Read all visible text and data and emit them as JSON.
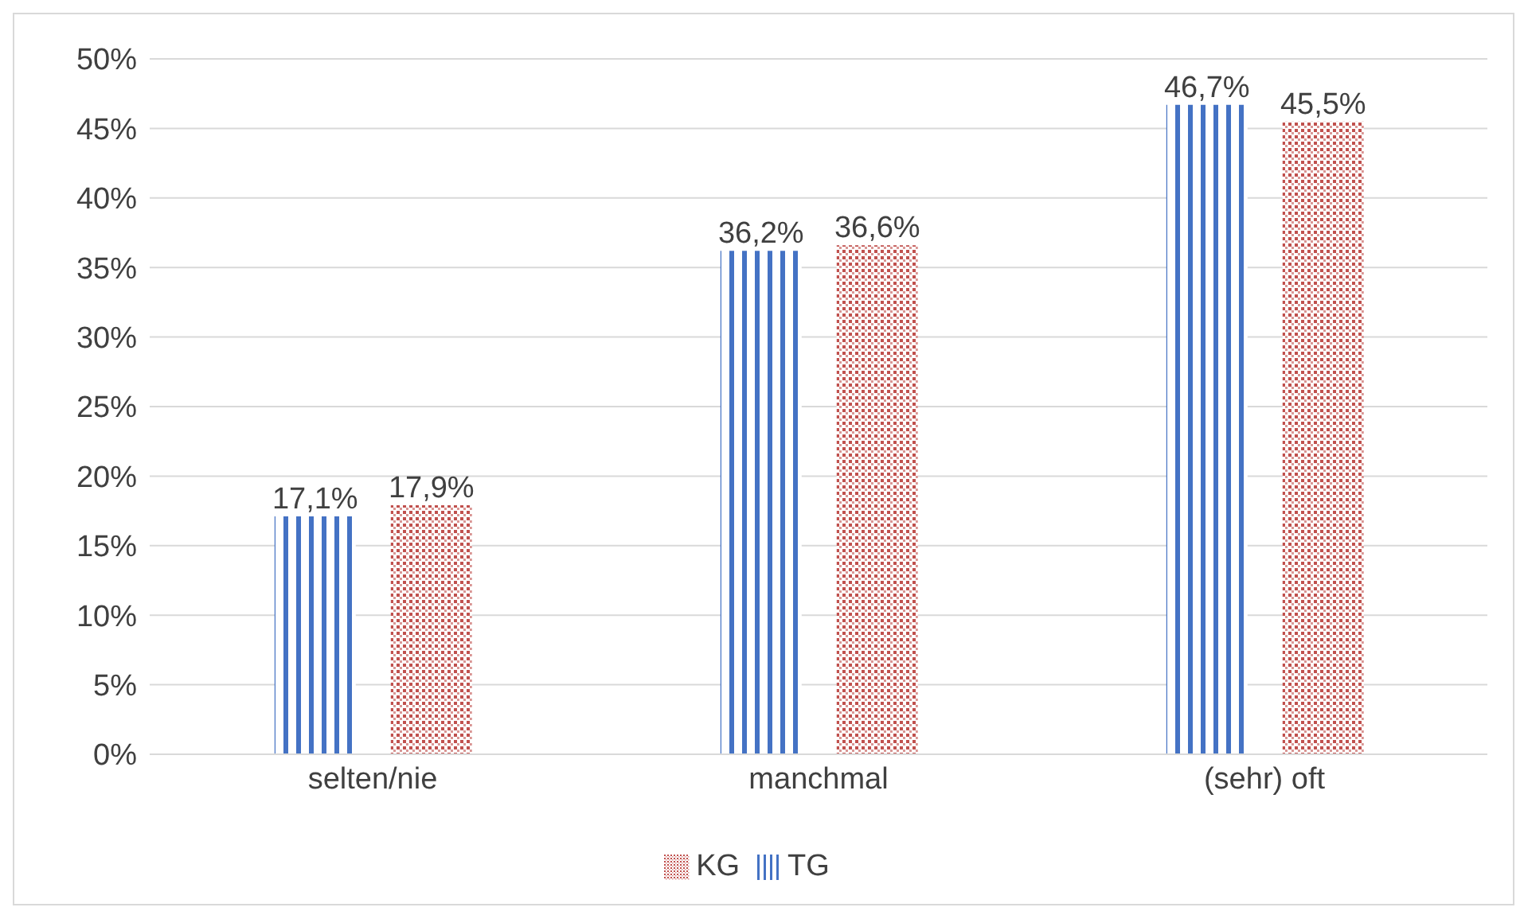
{
  "chart_data": {
    "type": "bar",
    "categories": [
      "selten/nie",
      "manchmal",
      "(sehr) oft"
    ],
    "series": [
      {
        "name": "TG",
        "color": "#4472c4",
        "values": [
          17.1,
          36.2,
          46.7
        ],
        "value_labels": [
          "17,1%",
          "36,2%",
          "46,7%"
        ]
      },
      {
        "name": "KG",
        "color": "#c0504d",
        "values": [
          17.9,
          36.6,
          45.5
        ],
        "value_labels": [
          "17,9%",
          "36,6%",
          "45,5%"
        ]
      }
    ],
    "ylim": [
      0,
      50
    ],
    "yticks": [
      {
        "value": 0,
        "label": "0%"
      },
      {
        "value": 5,
        "label": "5%"
      },
      {
        "value": 10,
        "label": "10%"
      },
      {
        "value": 15,
        "label": "15%"
      },
      {
        "value": 20,
        "label": "20%"
      },
      {
        "value": 25,
        "label": "25%"
      },
      {
        "value": 30,
        "label": "30%"
      },
      {
        "value": 35,
        "label": "35%"
      },
      {
        "value": 40,
        "label": "40%"
      },
      {
        "value": 45,
        "label": "45%"
      },
      {
        "value": 50,
        "label": "50%"
      }
    ],
    "grid": "y",
    "legend": "bottom"
  }
}
